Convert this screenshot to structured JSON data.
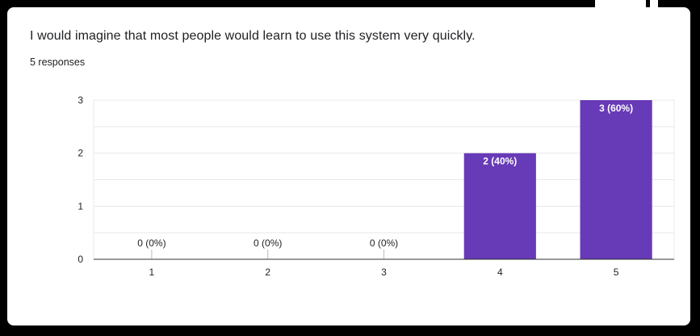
{
  "card": {
    "question": "I would imagine that most people would learn to use this system very quickly.",
    "responses": "5 responses"
  },
  "colors": {
    "bar": "#673ab7",
    "grid": "#e8e8e8",
    "axis": "#333333"
  },
  "chart_data": {
    "type": "bar",
    "categories": [
      "1",
      "2",
      "3",
      "4",
      "5"
    ],
    "values": [
      0,
      0,
      0,
      2,
      3
    ],
    "data_labels": [
      "0 (0%)",
      "0 (0%)",
      "0 (0%)",
      "2 (40%)",
      "3 (60%)"
    ],
    "ylim": [
      0,
      3
    ],
    "yticks": [
      "0",
      "1",
      "2",
      "3"
    ],
    "grid": true,
    "title": "",
    "xlabel": "",
    "ylabel": ""
  }
}
